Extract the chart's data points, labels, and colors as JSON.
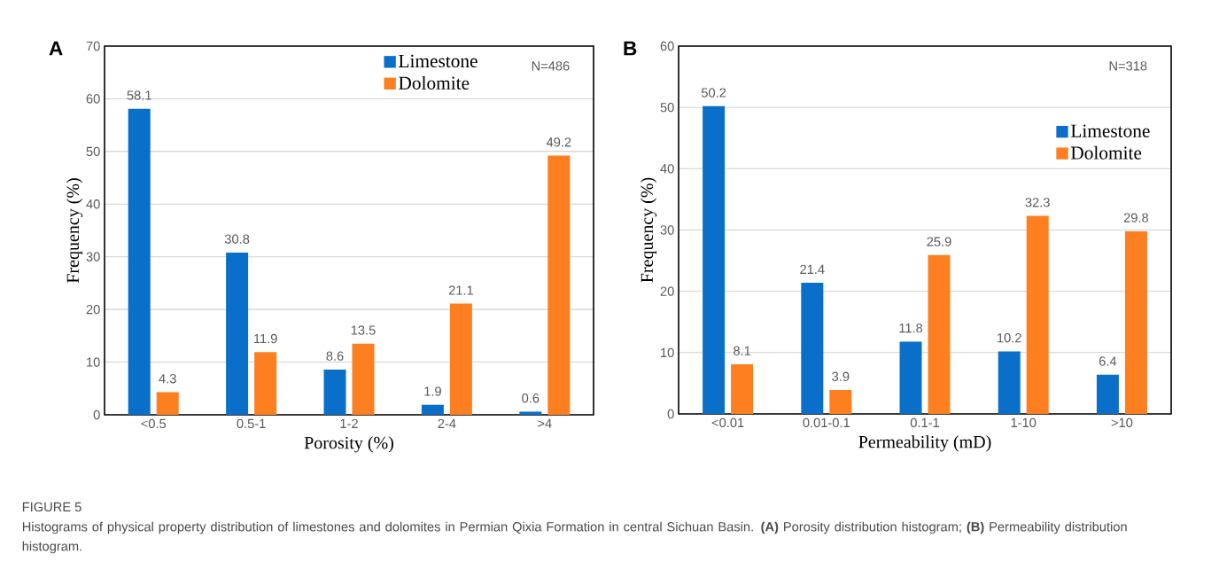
{
  "chart_data": [
    {
      "type": "bar",
      "title": "A",
      "categories": [
        "<0.5",
        "0.5-1",
        "1-2",
        "2-4",
        ">4"
      ],
      "xlabel": "Porosity (%)",
      "ylabel": "Frequency (%)",
      "series": [
        {
          "name": "Limestone",
          "color": "#0a6fc8",
          "values": [
            58.1,
            30.8,
            8.6,
            1.9,
            0.6
          ]
        },
        {
          "name": "Dolomite",
          "color": "#fd7f20",
          "values": [
            4.3,
            11.9,
            13.5,
            21.1,
            49.2
          ]
        }
      ],
      "ylim": [
        0,
        70
      ],
      "yticks": [
        0,
        10,
        20,
        30,
        40,
        50,
        60,
        70
      ],
      "grid": "y",
      "legend": "top",
      "data_labels": true,
      "annotations": [
        "N=486",
        "FIGURE 5",
        "Histograms of physical property distribution of limestones and dolomites in Permian Qixia Formation in central Sichuan Basin. **(A)** Porosity distribution histogram; **(B)** Permeability distribution histogram."
      ]
    },
    {
      "type": "bar",
      "title": "B",
      "categories": [
        "<0.01",
        "0.01-0.1",
        "0.1-1",
        "1-10",
        ">10"
      ],
      "xlabel": "Permeability (mD)",
      "ylabel": "Frequency (%)",
      "series": [
        {
          "name": "Limestone",
          "color": "#0a6fc8",
          "values": [
            50.2,
            21.4,
            11.8,
            10.2,
            6.4
          ]
        },
        {
          "name": "Dolomite",
          "color": "#fd7f20",
          "values": [
            8.1,
            3.9,
            25.9,
            32.3,
            29.8
          ]
        }
      ],
      "ylim": [
        0,
        60
      ],
      "yticks": [
        0,
        10,
        20,
        30,
        40,
        50,
        60
      ],
      "grid": "y",
      "legend": "right",
      "data_labels": true,
      "annotations": [
        "N=318"
      ]
    }
  ]
}
